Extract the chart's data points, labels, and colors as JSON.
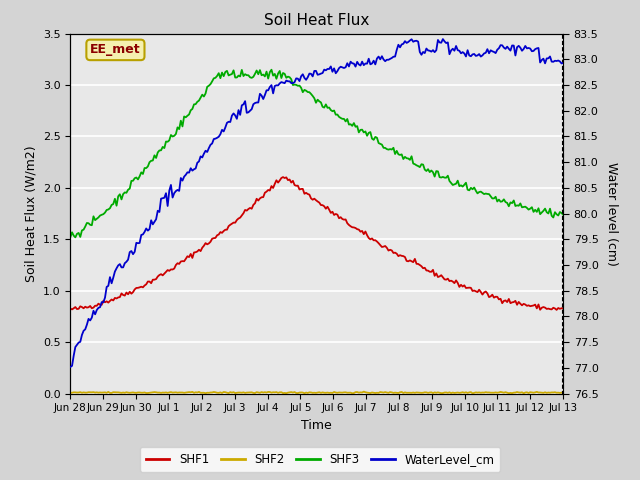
{
  "title": "Soil Heat Flux",
  "ylabel_left": "Soil Heat Flux (W/m2)",
  "ylabel_right": "Water level (cm)",
  "xlabel": "Time",
  "ylim_left": [
    0.0,
    3.5
  ],
  "ylim_right": [
    76.5,
    83.5
  ],
  "fig_bg_color": "#d4d4d4",
  "plot_bg_color": "#e8e8e8",
  "annotation_text": "EE_met",
  "annotation_color": "#8b0000",
  "annotation_bg": "#f5f0b0",
  "annotation_border": "#b8a000",
  "xtick_labels": [
    "Jun 28",
    "Jun 29",
    "Jun 30",
    "Jul 1",
    "Jul 2",
    "Jul 3",
    "Jul 4",
    "Jul 5",
    "Jul 6",
    "Jul 7",
    "Jul 8",
    "Jul 9",
    "Jul 10",
    "Jul 11",
    "Jul 12",
    "Jul 13"
  ],
  "shf1_color": "#cc0000",
  "shf2_color": "#ccaa00",
  "shf3_color": "#00aa00",
  "water_color": "#0000cc"
}
